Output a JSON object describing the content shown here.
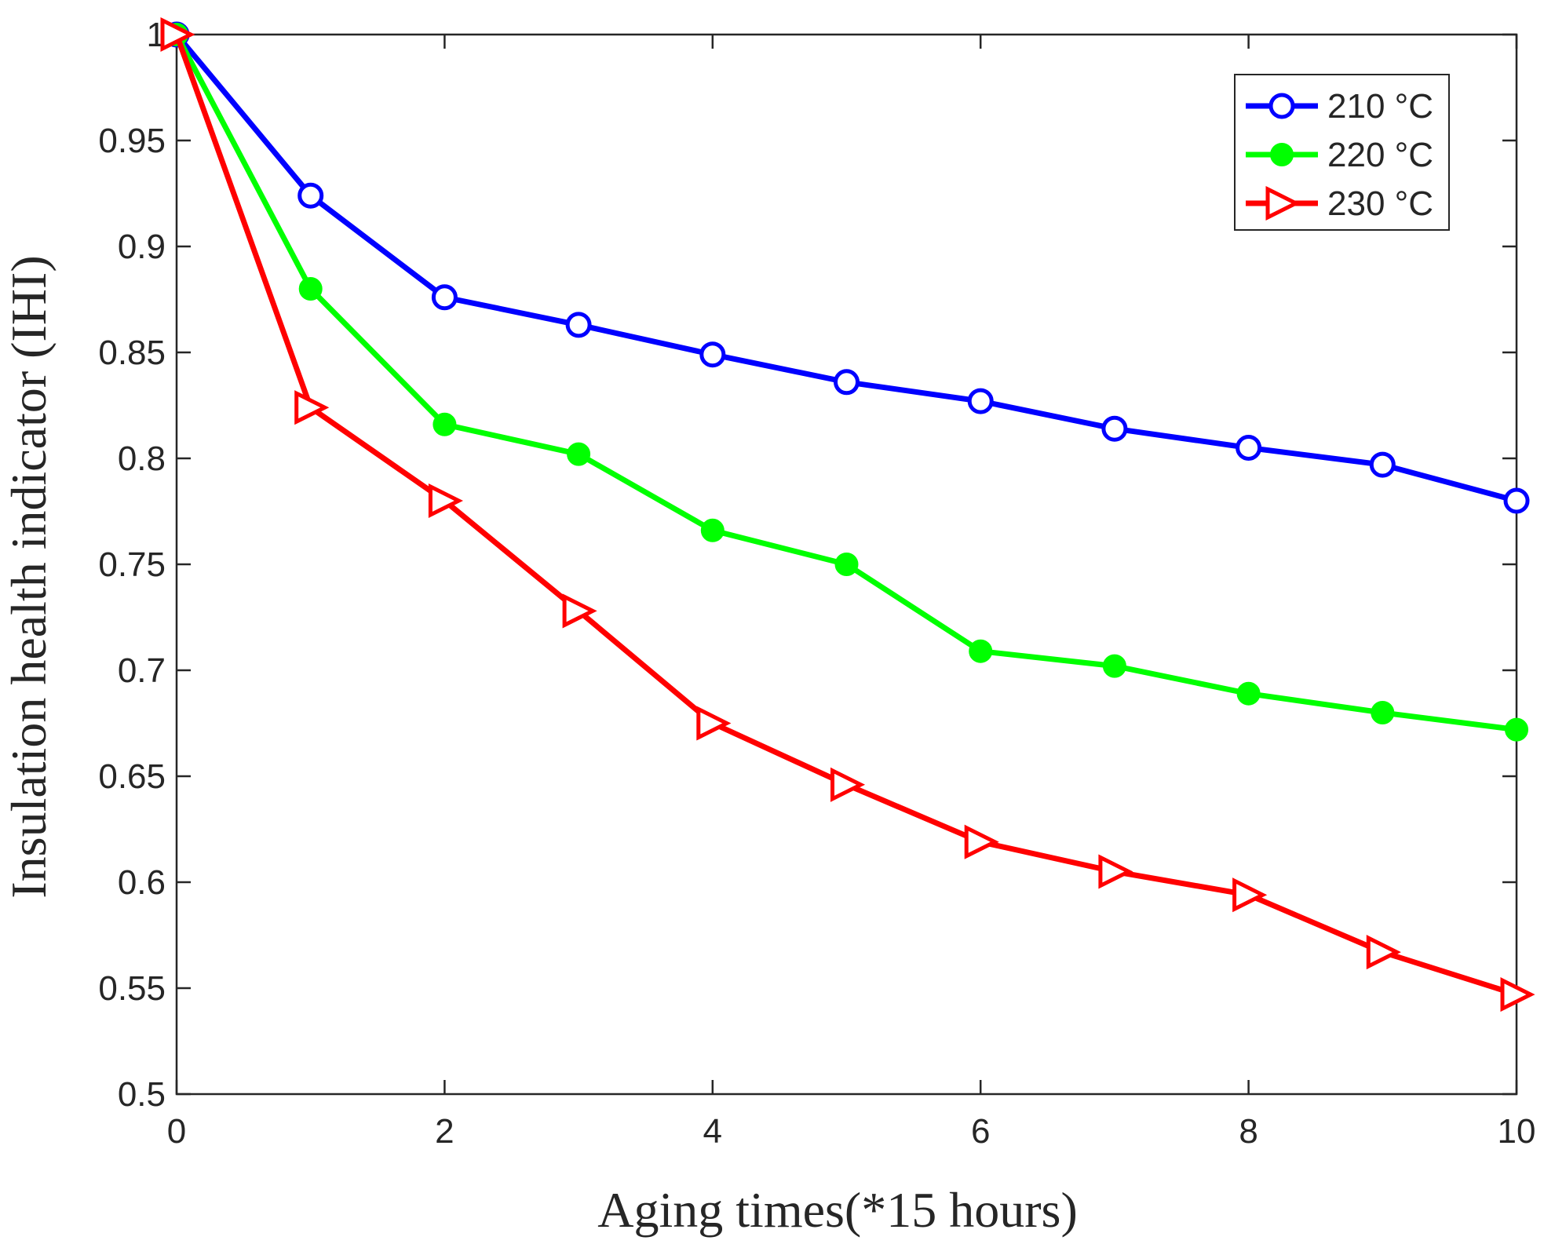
{
  "chart_data": {
    "type": "line",
    "title": "",
    "xlabel": "Aging times(*15 hours)",
    "ylabel": "Insulation health indicator (IHI)",
    "xlim": [
      0,
      10
    ],
    "ylim": [
      0.5,
      1
    ],
    "xticks": [
      0,
      2,
      4,
      6,
      8,
      10
    ],
    "yticks": [
      0.5,
      0.55,
      0.6,
      0.65,
      0.7,
      0.75,
      0.8,
      0.85,
      0.9,
      0.95,
      1
    ],
    "ytick_labels": [
      "0.5",
      "0.55",
      "0.6",
      "0.65",
      "0.7",
      "0.75",
      "0.8",
      "0.85",
      "0.9",
      "0.95",
      "1"
    ],
    "grid": false,
    "legend_position": "top-right",
    "x": [
      0,
      1,
      2,
      3,
      4,
      5,
      6,
      7,
      8,
      9,
      10
    ],
    "series": [
      {
        "name": "210 °C",
        "color": "#0000ff",
        "marker": "open-circle",
        "values": [
          1.0,
          0.924,
          0.876,
          0.863,
          0.849,
          0.836,
          0.827,
          0.814,
          0.805,
          0.797,
          0.78
        ]
      },
      {
        "name": "220 °C",
        "color": "#00ff00",
        "marker": "filled-circle",
        "values": [
          1.0,
          0.88,
          0.816,
          0.802,
          0.766,
          0.75,
          0.709,
          0.702,
          0.689,
          0.68,
          0.672
        ]
      },
      {
        "name": "230 °C",
        "color": "#ff0000",
        "marker": "open-triangle-right",
        "values": [
          1.0,
          0.824,
          0.78,
          0.728,
          0.675,
          0.646,
          0.619,
          0.605,
          0.594,
          0.567,
          0.547
        ]
      }
    ]
  }
}
